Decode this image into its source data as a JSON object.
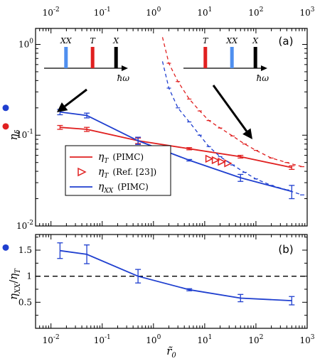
{
  "chart_data": [
    {
      "type": "line",
      "panel_label": "(a)",
      "x_scale": "log",
      "y_scale": "log",
      "xlim": [
        0.005,
        1000
      ],
      "ylim": [
        0.01,
        1.5
      ],
      "xticks": [
        {
          "value": 0.01,
          "base": "10",
          "exp": "-2"
        },
        {
          "value": 0.1,
          "base": "10",
          "exp": "-1"
        },
        {
          "value": 1,
          "base": "10",
          "exp": "0"
        },
        {
          "value": 10,
          "base": "10",
          "exp": "1"
        },
        {
          "value": 100,
          "base": "10",
          "exp": "2"
        },
        {
          "value": 1000,
          "base": "10",
          "exp": "3"
        }
      ],
      "yticks": [
        {
          "value": 0.01,
          "base": "10",
          "exp": "-2"
        },
        {
          "value": 0.1,
          "base": "10",
          "exp": "-1"
        },
        {
          "value": 1,
          "base": "10",
          "exp": "0"
        }
      ],
      "ylabel": {
        "main": "η",
        "sub": "δ"
      },
      "grid": false,
      "legend_position": "lower-left",
      "series": [
        {
          "name": "η_T (PIMC)",
          "legend_main": "η",
          "legend_sub": "T",
          "legend_suffix": "(PIMC)",
          "color": "#e02020",
          "style": "solid",
          "x": [
            0.015,
            0.05,
            0.5,
            5,
            50,
            500
          ],
          "y": [
            0.122,
            0.116,
            0.087,
            0.071,
            0.058,
            0.044
          ],
          "err": [
            0.006,
            0.006,
            0.006,
            0.002,
            0.002,
            0.002
          ]
        },
        {
          "name": "η_T (Ref. [23])",
          "legend_main": "η",
          "legend_sub": "T",
          "legend_suffix": "(Ref. [23])",
          "color": "#e02020",
          "style": "triangle-markers",
          "x": [
            12,
            16,
            21,
            28
          ],
          "y": [
            0.055,
            0.053,
            0.051,
            0.049
          ]
        },
        {
          "name": "η_XX (PIMC)",
          "legend_main": "η",
          "legend_sub": "XX",
          "legend_suffix": "(PIMC)",
          "color": "#1f3fcf",
          "style": "solid",
          "x": [
            0.015,
            0.05,
            0.5,
            5,
            50,
            500
          ],
          "y": [
            0.18,
            0.165,
            0.087,
            0.053,
            0.034,
            0.024
          ],
          "err": [
            0.012,
            0.01,
            0.008,
            0.001,
            0.003,
            0.004
          ]
        },
        {
          "name": "η_T dashed",
          "color": "#e02020",
          "style": "dashed",
          "x": [
            1.5,
            2,
            3,
            5,
            8,
            12,
            20,
            35,
            60,
            100,
            200,
            400,
            800
          ],
          "y": [
            1.2,
            0.62,
            0.39,
            0.25,
            0.185,
            0.145,
            0.12,
            0.098,
            0.08,
            0.068,
            0.056,
            0.05,
            0.045
          ]
        },
        {
          "name": "η_XX dashed",
          "color": "#1f3fcf",
          "style": "dashed",
          "x": [
            1.5,
            2,
            3,
            5,
            8,
            12,
            20,
            35,
            60,
            100,
            200,
            400,
            800
          ],
          "y": [
            0.65,
            0.33,
            0.2,
            0.14,
            0.1,
            0.075,
            0.058,
            0.047,
            0.039,
            0.033,
            0.028,
            0.025,
            0.022
          ]
        }
      ],
      "side_markers": [
        {
          "color": "#1f3fcf",
          "y": 0.2
        },
        {
          "color": "#e02020",
          "y": 0.125
        }
      ],
      "insets": [
        {
          "side": "left",
          "lines": [
            {
              "label_main": "X",
              "label_sub": "X",
              "color": "#4f8fef"
            },
            {
              "label_main": "T",
              "label_sub": "",
              "color": "#e02020"
            },
            {
              "label_main": "X",
              "label_sub": "",
              "color": "#000000"
            }
          ],
          "axis_label": "ħω"
        },
        {
          "side": "right",
          "lines": [
            {
              "label_main": "T",
              "label_sub": "",
              "color": "#e02020"
            },
            {
              "label_main": "X",
              "label_sub": "X",
              "color": "#4f8fef"
            },
            {
              "label_main": "X",
              "label_sub": "",
              "color": "#000000"
            }
          ],
          "axis_label": "ħω"
        }
      ]
    },
    {
      "type": "line",
      "panel_label": "(b)",
      "x_scale": "log",
      "y_scale": "linear",
      "xlim": [
        0.005,
        1000
      ],
      "ylim": [
        0,
        1.8
      ],
      "xticks": [
        {
          "value": 0.01,
          "base": "10",
          "exp": "-2"
        },
        {
          "value": 0.1,
          "base": "10",
          "exp": "-1"
        },
        {
          "value": 1,
          "base": "10",
          "exp": "0"
        },
        {
          "value": 10,
          "base": "10",
          "exp": "1"
        },
        {
          "value": 100,
          "base": "10",
          "exp": "2"
        },
        {
          "value": 1000,
          "base": "10",
          "exp": "3"
        }
      ],
      "yticks": [
        "0.5",
        "1",
        "1.5"
      ],
      "ylabel": {
        "main1": "η",
        "sub1": "XX",
        "sep": "/",
        "main2": "η",
        "sub2": "T"
      },
      "xlabel": {
        "main": "r̃",
        "sub": "0"
      },
      "reference_line": {
        "y": 1,
        "style": "dashed",
        "color": "#000000"
      },
      "side_markers": [
        {
          "color": "#1f3fcf",
          "y": 1.55
        }
      ],
      "series": [
        {
          "name": "η_XX / η_T",
          "color": "#1f3fcf",
          "x": [
            0.015,
            0.05,
            0.5,
            5,
            50,
            500
          ],
          "y": [
            1.49,
            1.42,
            1.0,
            0.74,
            0.58,
            0.53
          ],
          "err": [
            0.15,
            0.18,
            0.13,
            0.02,
            0.07,
            0.08
          ]
        }
      ]
    }
  ]
}
